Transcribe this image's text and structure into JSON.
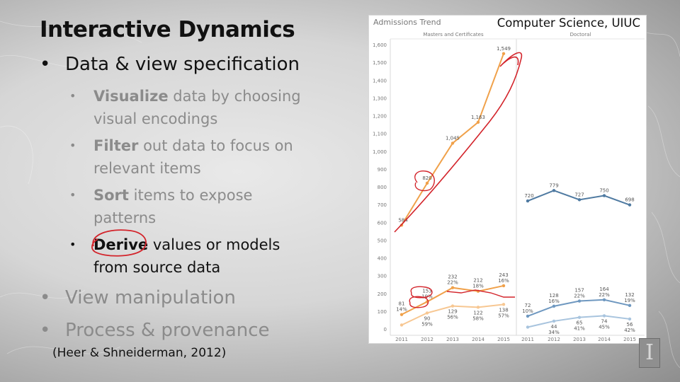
{
  "slide": {
    "title": "Interactive Dynamics",
    "bullets": [
      {
        "text": "Data & view specification",
        "dim": false
      },
      {
        "text": "View manipulation",
        "dim": true
      },
      {
        "text": "Process & provenance",
        "dim": true
      }
    ],
    "sub_bullets": [
      {
        "keyword": "Visualize",
        "rest": " data by choosing visual encodings",
        "active": false
      },
      {
        "keyword": "Filter",
        "rest": " out data to focus on relevant items",
        "active": false
      },
      {
        "keyword": "Sort",
        "rest": " items to expose patterns",
        "active": false
      },
      {
        "keyword": "Derive",
        "rest": " values or models from source data",
        "active": true
      }
    ],
    "citation": "(Heer & Shneiderman, 2012)",
    "panel_label": "Computer Science, UIUC",
    "logo_text": "I",
    "annotation_color": "#d3232a"
  },
  "chart_data": {
    "type": "line",
    "title": "Admissions Trend",
    "panels": [
      "Masters and Certificates",
      "Doctoral"
    ],
    "categories": [
      "2011",
      "2012",
      "2013",
      "2014",
      "2015"
    ],
    "y_ticks": [
      "0",
      "100",
      "200",
      "300",
      "400",
      "500",
      "600",
      "700",
      "800",
      "900",
      "1,000",
      "1,100",
      "1,200",
      "1,300",
      "1,400",
      "1,500",
      "1,600"
    ],
    "ylim": [
      0,
      1600
    ],
    "grid": false,
    "series": [
      {
        "panel": 0,
        "color": "#f0a14a",
        "values": [
          584,
          820,
          1045,
          1163,
          1549
        ],
        "labels": [
          "584",
          "820",
          "1,045",
          "1,163",
          "1,549"
        ]
      },
      {
        "panel": 0,
        "color": "#f0a14a",
        "values": [
          81,
          153,
          232,
          212,
          243
        ],
        "labels": [
          "81\n14%",
          "153\n19%",
          "232\n22%",
          "212\n18%",
          "243\n16%"
        ]
      },
      {
        "panel": 0,
        "color": "#f7c792",
        "values": [
          22,
          90,
          129,
          122,
          138
        ],
        "labels": [
          "",
          "90\n59%",
          "129\n56%",
          "122\n58%",
          "138\n57%"
        ]
      },
      {
        "panel": 1,
        "color": "#4f7aa1",
        "values": [
          720,
          779,
          727,
          750,
          698
        ],
        "labels": [
          "720",
          "779",
          "727",
          "750",
          "698"
        ]
      },
      {
        "panel": 1,
        "color": "#6f98c0",
        "values": [
          72,
          128,
          157,
          164,
          132
        ],
        "labels": [
          "72\n10%",
          "128\n16%",
          "157\n22%",
          "164\n22%",
          "132\n19%"
        ]
      },
      {
        "panel": 1,
        "color": "#a8c4de",
        "values": [
          10,
          44,
          65,
          74,
          56
        ],
        "labels": [
          "",
          "44\n34%",
          "65\n41%",
          "74\n45%",
          "56\n42%"
        ]
      }
    ]
  }
}
